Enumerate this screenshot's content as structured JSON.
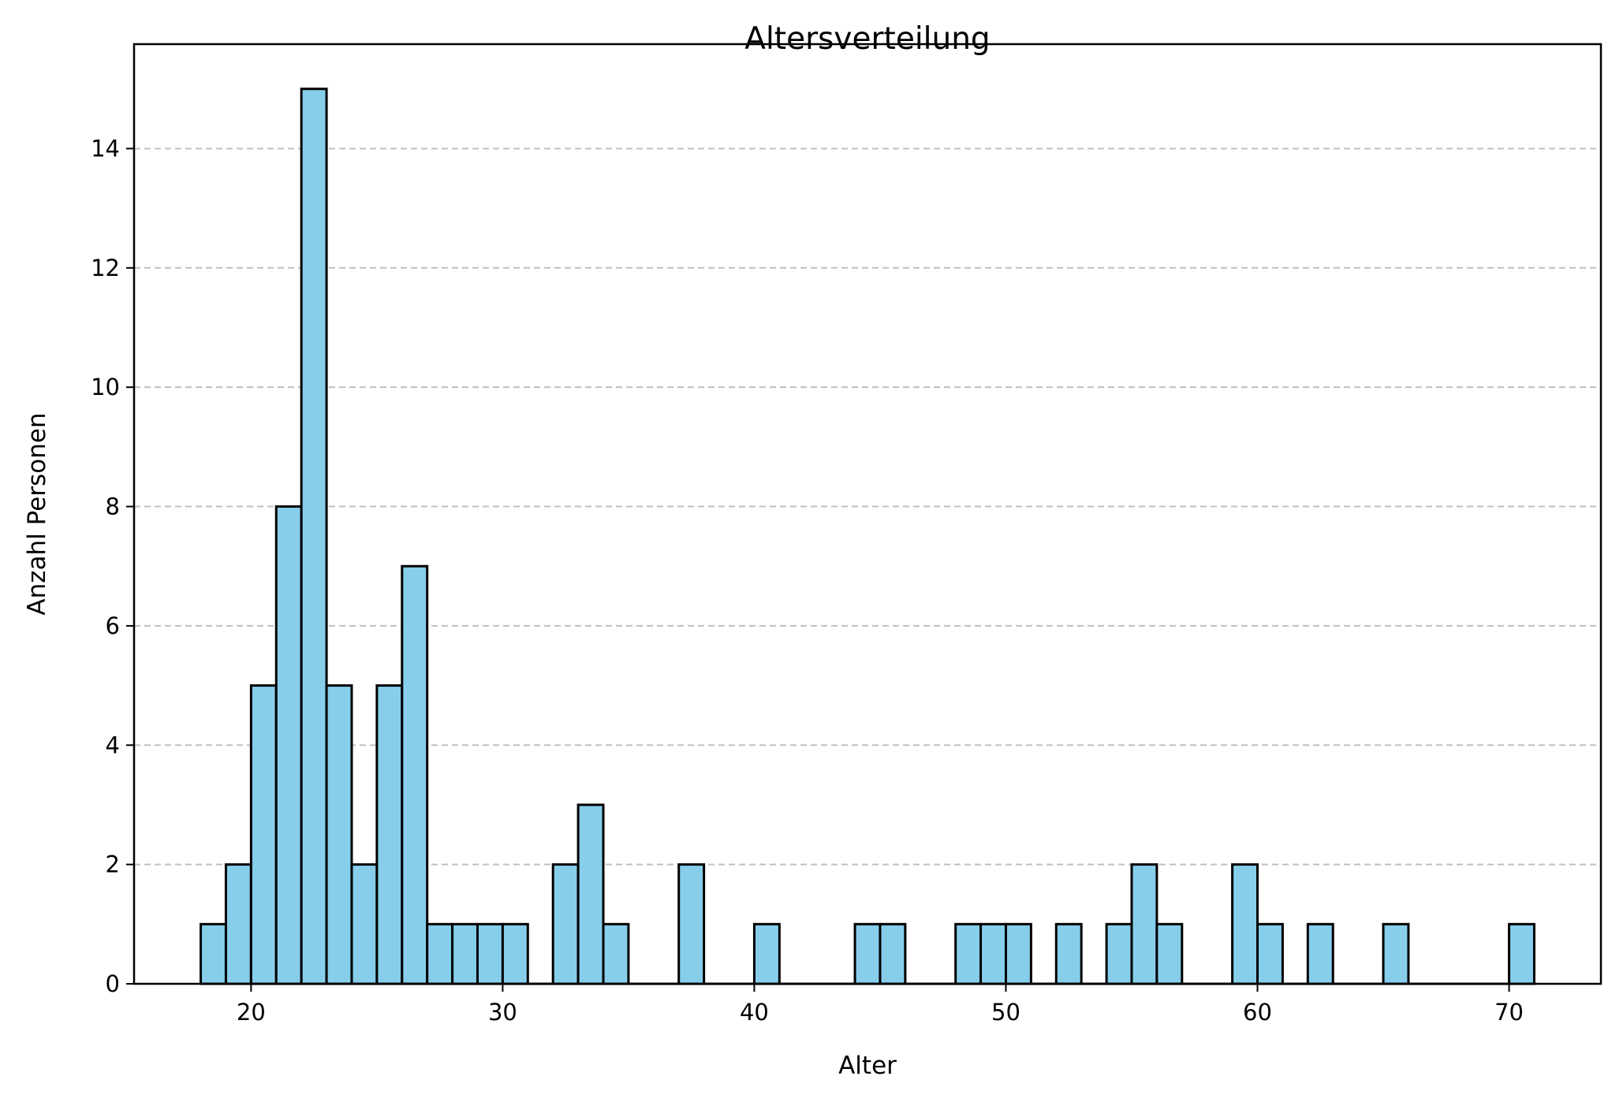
{
  "chart_data": {
    "type": "bar",
    "title": "Altersverteilung",
    "xlabel": "Alter",
    "ylabel": "Anzahl Personen",
    "xlim": [
      15.35,
      73.65
    ],
    "ylim": [
      0,
      15.75
    ],
    "bin_start": 18,
    "bin_width": 1,
    "values": [
      1,
      2,
      5,
      8,
      15,
      5,
      2,
      5,
      7,
      1,
      1,
      1,
      1,
      0,
      2,
      3,
      1,
      0,
      0,
      2,
      0,
      0,
      1,
      0,
      0,
      0,
      1,
      1,
      0,
      0,
      1,
      1,
      1,
      0,
      1,
      0,
      1,
      2,
      1,
      0,
      0,
      2,
      1,
      0,
      1,
      0,
      0,
      1,
      0,
      0,
      0,
      0,
      1
    ],
    "x_ticks": [
      20,
      30,
      40,
      50,
      60,
      70
    ],
    "y_ticks": [
      0,
      2,
      4,
      6,
      8,
      10,
      12,
      14
    ],
    "grid": "y, dashed",
    "bar_color": "#87ceeb",
    "edge_color": "#000000",
    "grid_color": "#c0c0c0"
  }
}
